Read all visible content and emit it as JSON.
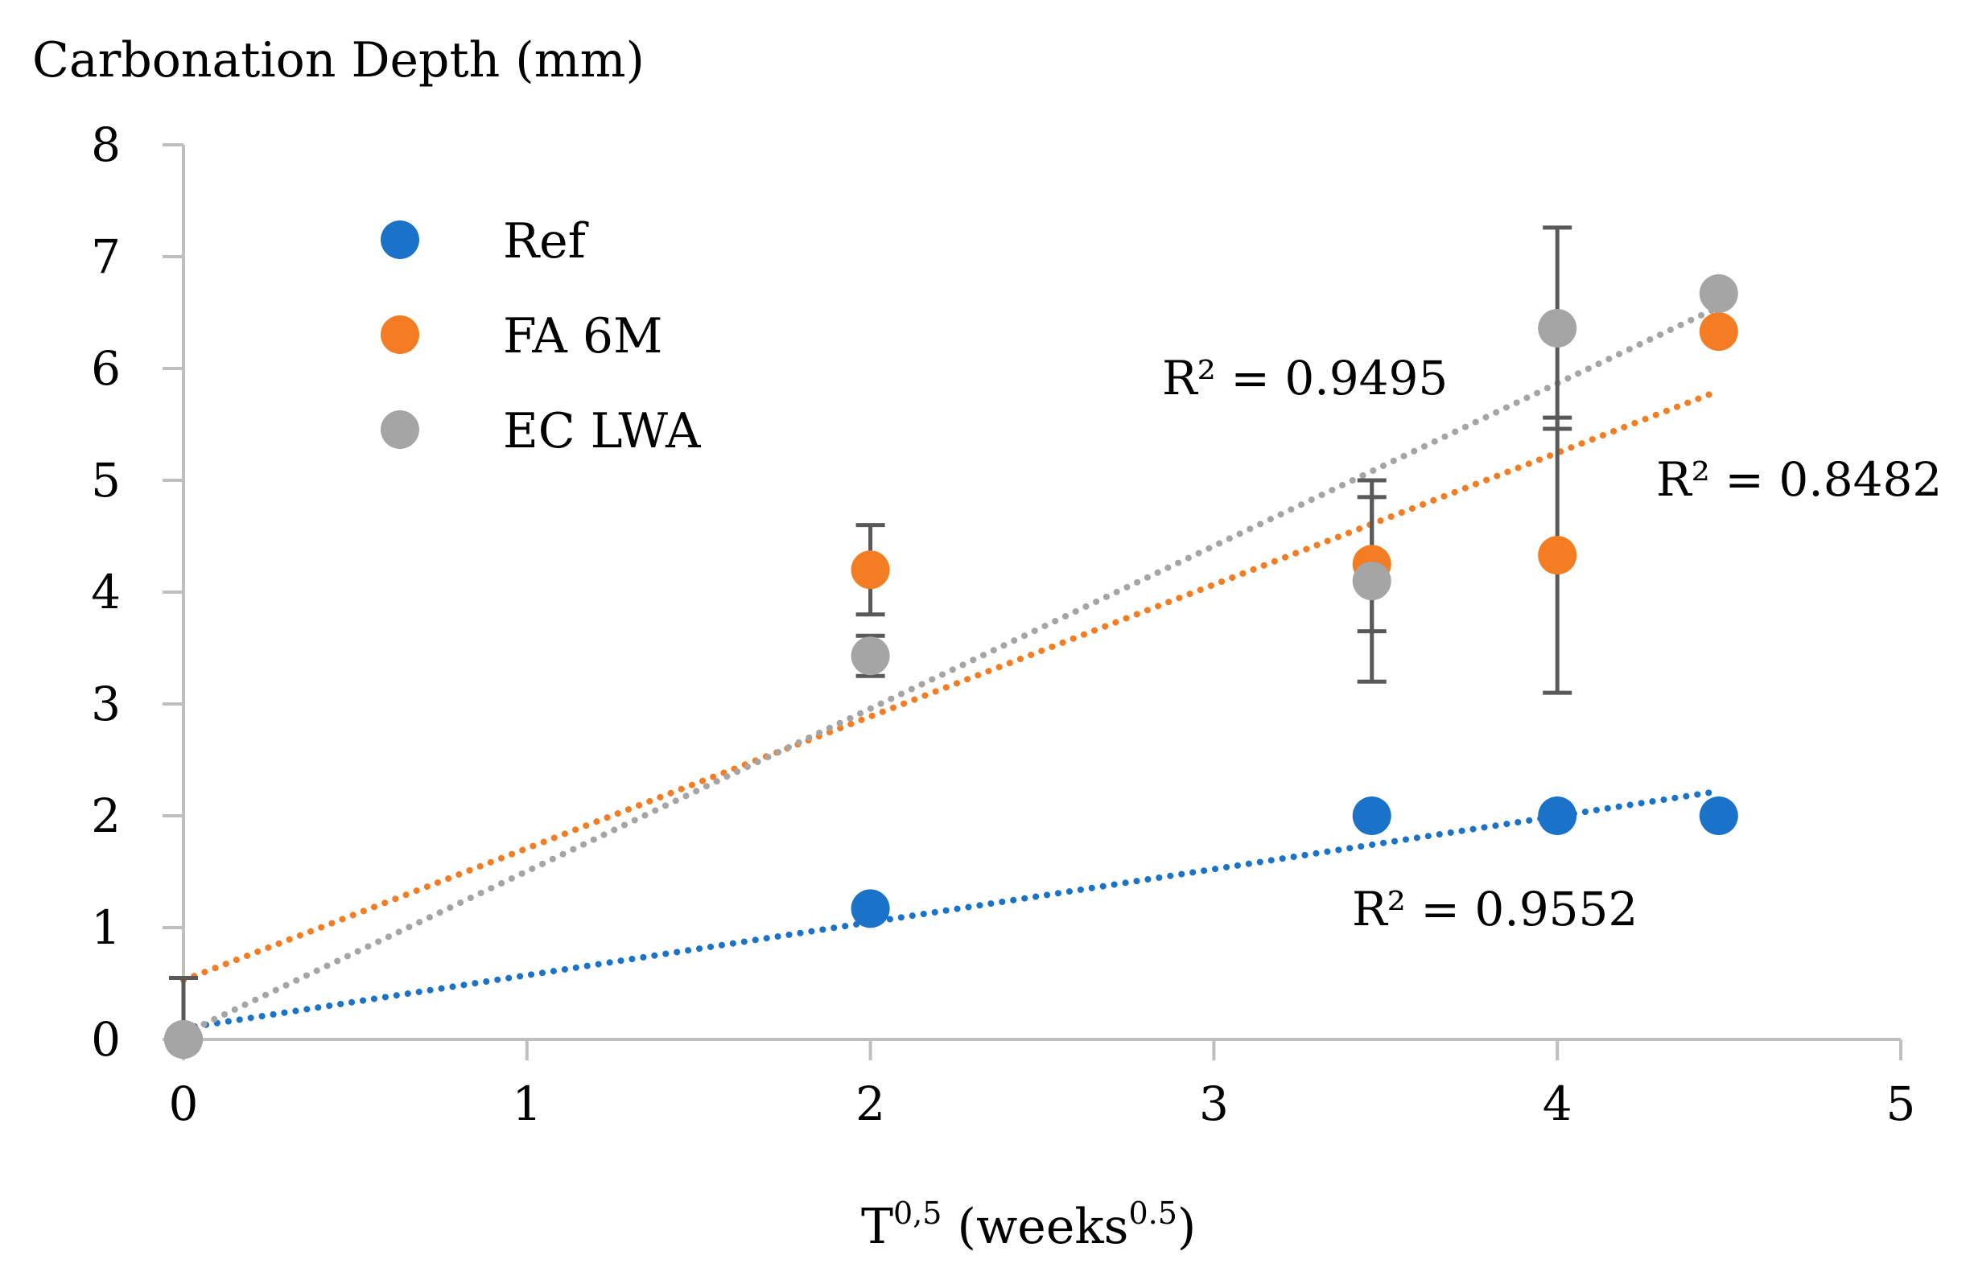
{
  "chart_data": {
    "type": "scatter",
    "title": "Carbonation Depth (mm)",
    "xlabel": {
      "base": "T",
      "sup": "0,5",
      "unit_base": " (weeks",
      "unit_sup": "0.5",
      "unit_end": ")"
    },
    "ylabel": "",
    "xlim": [
      0,
      5
    ],
    "ylim": [
      0,
      8
    ],
    "xticks": [
      "0",
      "1",
      "2",
      "3",
      "4",
      "5"
    ],
    "yticks": [
      "0",
      "1",
      "2",
      "3",
      "4",
      "5",
      "6",
      "7",
      "8"
    ],
    "legend_position": "top-left",
    "series": [
      {
        "name": "Ref",
        "color": "#1a72c9",
        "points": [
          {
            "x": 0,
            "y": 0,
            "err": 0
          },
          {
            "x": 2,
            "y": 1.17,
            "err": 0
          },
          {
            "x": 3.46,
            "y": 2.0,
            "err": 0
          },
          {
            "x": 4,
            "y": 2.0,
            "err": 0
          },
          {
            "x": 4.47,
            "y": 2.0,
            "err": 0
          }
        ],
        "trend": {
          "x0": 0,
          "y0": 0.1,
          "x1": 4.47,
          "y1": 2.22
        },
        "r2": "R² = 0.9552"
      },
      {
        "name": "FA 6M",
        "color": "#f47d23",
        "points": [
          {
            "x": 0,
            "y": 0,
            "err": 0.55
          },
          {
            "x": 2,
            "y": 4.2,
            "err": 0.4
          },
          {
            "x": 3.46,
            "y": 4.25,
            "err": 0.6
          },
          {
            "x": 4,
            "y": 4.33,
            "err": 1.23
          },
          {
            "x": 4.47,
            "y": 6.33,
            "err": 0
          }
        ],
        "trend": {
          "x0": 0,
          "y0": 0.53,
          "x1": 4.47,
          "y1": 5.8
        },
        "r2": "R² = 0.8482"
      },
      {
        "name": "EC LWA",
        "color": "#a5a5a5",
        "points": [
          {
            "x": 0,
            "y": 0,
            "err": 0
          },
          {
            "x": 2,
            "y": 3.43,
            "err": 0.18
          },
          {
            "x": 3.46,
            "y": 4.1,
            "err": 0.9
          },
          {
            "x": 4,
            "y": 6.36,
            "err": 0.9
          },
          {
            "x": 4.47,
            "y": 6.67,
            "err": 0
          }
        ],
        "trend": {
          "x0": 0,
          "y0": 0.05,
          "x1": 4.47,
          "y1": 6.55
        },
        "r2": "R² = 0.9495"
      }
    ]
  }
}
